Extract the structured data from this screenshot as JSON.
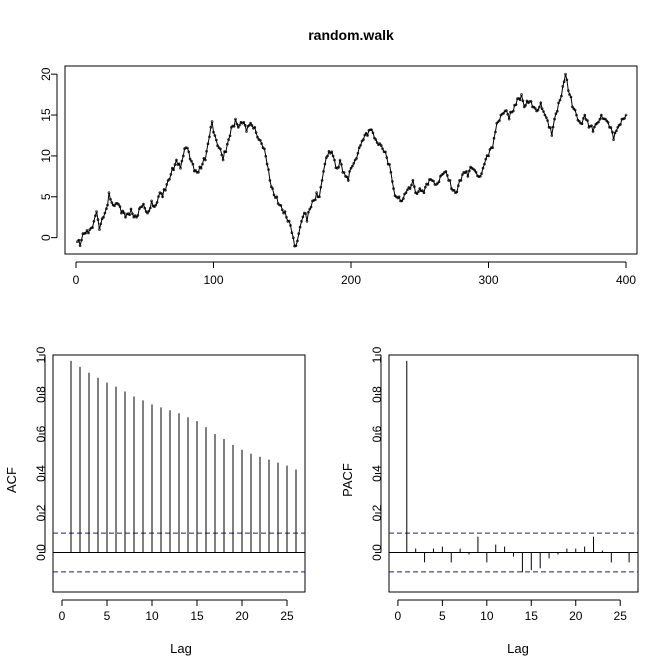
{
  "chart_data": [
    {
      "type": "line",
      "title": "random.walk",
      "xlabel": "",
      "ylabel": "",
      "xlim": [
        -8,
        408
      ],
      "ylim": [
        -2,
        21
      ],
      "xticks": [
        0,
        100,
        200,
        300,
        400
      ],
      "yticks": [
        0,
        5,
        10,
        15,
        20
      ],
      "grid": false,
      "legend": "none",
      "line_color": "#000000",
      "series": [
        {
          "x_start": 1,
          "x_step": 1,
          "anchors": [
            [
              1,
              -0.5
            ],
            [
              3,
              -1.0
            ],
            [
              6,
              0.5
            ],
            [
              10,
              1.0
            ],
            [
              13,
              2.0
            ],
            [
              15,
              3.2
            ],
            [
              17,
              1.0
            ],
            [
              20,
              2.5
            ],
            [
              23,
              4.0
            ],
            [
              24,
              5.5
            ],
            [
              27,
              4.0
            ],
            [
              30,
              4.2
            ],
            [
              33,
              3.0
            ],
            [
              36,
              2.5
            ],
            [
              40,
              3.5
            ],
            [
              44,
              2.5
            ],
            [
              48,
              3.8
            ],
            [
              52,
              3.0
            ],
            [
              55,
              4.5
            ],
            [
              58,
              4.0
            ],
            [
              61,
              5.5
            ],
            [
              63,
              5.0
            ],
            [
              65,
              5.8
            ],
            [
              67,
              7.0
            ],
            [
              70,
              8.5
            ],
            [
              73,
              9.5
            ],
            [
              76,
              8.5
            ],
            [
              78,
              10.0
            ],
            [
              80,
              11.0
            ],
            [
              82,
              10.5
            ],
            [
              85,
              9.0
            ],
            [
              88,
              8.0
            ],
            [
              91,
              8.5
            ],
            [
              94,
              9.5
            ],
            [
              96,
              11.5
            ],
            [
              98,
              13.5
            ],
            [
              99,
              14.2
            ],
            [
              101,
              12.5
            ],
            [
              104,
              11.0
            ],
            [
              107,
              9.5
            ],
            [
              109,
              10.5
            ],
            [
              111,
              12.0
            ],
            [
              113,
              13.5
            ],
            [
              116,
              14.5
            ],
            [
              118,
              13.5
            ],
            [
              121,
              14.0
            ],
            [
              124,
              13.0
            ],
            [
              127,
              14.0
            ],
            [
              130,
              13.5
            ],
            [
              133,
              12.0
            ],
            [
              136,
              11.0
            ],
            [
              139,
              9.0
            ],
            [
              141,
              7.0
            ],
            [
              143,
              6.0
            ],
            [
              146,
              5.0
            ],
            [
              148,
              4.0
            ],
            [
              151,
              3.0
            ],
            [
              154,
              2.0
            ],
            [
              156,
              1.5
            ],
            [
              158,
              0.0
            ],
            [
              160,
              -1.0
            ],
            [
              162,
              0.5
            ],
            [
              164,
              2.0
            ],
            [
              166,
              3.0
            ],
            [
              168,
              2.0
            ],
            [
              170,
              3.5
            ],
            [
              172,
              4.5
            ],
            [
              175,
              5.5
            ],
            [
              177,
              5.0
            ],
            [
              179,
              7.0
            ],
            [
              181,
              9.0
            ],
            [
              183,
              10.0
            ],
            [
              186,
              10.5
            ],
            [
              188,
              9.5
            ],
            [
              190,
              8.5
            ],
            [
              192,
              9.5
            ],
            [
              194,
              8.0
            ],
            [
              196,
              7.5
            ],
            [
              198,
              7.0
            ],
            [
              200,
              8.5
            ],
            [
              203,
              9.5
            ],
            [
              206,
              11.0
            ],
            [
              209,
              12.0
            ],
            [
              212,
              12.5
            ],
            [
              215,
              13.2
            ],
            [
              218,
              12.0
            ],
            [
              221,
              11.5
            ],
            [
              224,
              10.5
            ],
            [
              227,
              9.0
            ],
            [
              229,
              8.0
            ],
            [
              231,
              6.0
            ],
            [
              233,
              5.0
            ],
            [
              235,
              5.0
            ],
            [
              237,
              4.5
            ],
            [
              240,
              5.5
            ],
            [
              243,
              6.0
            ],
            [
              245,
              7.0
            ],
            [
              247,
              5.5
            ],
            [
              250,
              6.0
            ],
            [
              253,
              5.5
            ],
            [
              256,
              6.5
            ],
            [
              259,
              7.0
            ],
            [
              262,
              6.5
            ],
            [
              265,
              7.5
            ],
            [
              268,
              8.0
            ],
            [
              271,
              7.0
            ],
            [
              273,
              6.0
            ],
            [
              276,
              5.5
            ],
            [
              279,
              7.0
            ],
            [
              282,
              8.0
            ],
            [
              285,
              7.5
            ],
            [
              288,
              8.5
            ],
            [
              291,
              8.0
            ],
            [
              294,
              7.5
            ],
            [
              297,
              9.0
            ],
            [
              300,
              10.0
            ],
            [
              303,
              11.0
            ],
            [
              306,
              14.0
            ],
            [
              309,
              15.0
            ],
            [
              312,
              15.5
            ],
            [
              315,
              14.5
            ],
            [
              318,
              15.5
            ],
            [
              321,
              17.0
            ],
            [
              324,
              17.5
            ],
            [
              326,
              16.0
            ],
            [
              329,
              16.5
            ],
            [
              332,
              16.0
            ],
            [
              335,
              15.5
            ],
            [
              338,
              16.5
            ],
            [
              341,
              15.0
            ],
            [
              344,
              13.5
            ],
            [
              346,
              12.5
            ],
            [
              348,
              14.5
            ],
            [
              351,
              16.5
            ],
            [
              354,
              18.5
            ],
            [
              356,
              20.0
            ],
            [
              358,
              18.0
            ],
            [
              361,
              16.0
            ],
            [
              364,
              15.0
            ],
            [
              367,
              14.0
            ],
            [
              370,
              15.0
            ],
            [
              373,
              13.5
            ],
            [
              376,
              13.0
            ],
            [
              379,
              14.0
            ],
            [
              382,
              15.0
            ],
            [
              385,
              14.5
            ],
            [
              388,
              13.5
            ],
            [
              391,
              12.0
            ],
            [
              394,
              13.5
            ],
            [
              397,
              14.5
            ],
            [
              400,
              15.0
            ]
          ]
        }
      ]
    },
    {
      "type": "bar",
      "title": "",
      "xlabel": "Lag",
      "ylabel": "ACF",
      "xlim": [
        -1,
        27
      ],
      "ylim": [
        -0.2,
        1.0
      ],
      "xticks": [
        0,
        5,
        10,
        15,
        20,
        25
      ],
      "yticks": [
        0.0,
        0.2,
        0.4,
        0.6,
        0.8,
        1.0
      ],
      "tick_labels_y": [
        "0.0",
        "0.2",
        "0.4",
        "0.6",
        "0.8",
        "1.0"
      ],
      "grid": false,
      "legend": "none",
      "confidence_bound": 0.098,
      "bound_color": "#1f1f9f",
      "lags": [
        1,
        2,
        3,
        4,
        5,
        6,
        7,
        8,
        9,
        10,
        11,
        12,
        13,
        14,
        15,
        16,
        17,
        18,
        19,
        20,
        21,
        22,
        23,
        24,
        25,
        26
      ],
      "values": [
        0.97,
        0.94,
        0.91,
        0.885,
        0.86,
        0.84,
        0.815,
        0.79,
        0.77,
        0.75,
        0.735,
        0.72,
        0.705,
        0.685,
        0.665,
        0.635,
        0.6,
        0.575,
        0.545,
        0.52,
        0.5,
        0.485,
        0.47,
        0.455,
        0.44,
        0.42
      ]
    },
    {
      "type": "bar",
      "title": "",
      "xlabel": "Lag",
      "ylabel": "PACF",
      "xlim": [
        -1,
        27
      ],
      "ylim": [
        -0.2,
        1.0
      ],
      "xticks": [
        0,
        5,
        10,
        15,
        20,
        25
      ],
      "yticks": [
        0.0,
        0.2,
        0.4,
        0.6,
        0.8,
        1.0
      ],
      "tick_labels_y": [
        "0.0",
        "0.2",
        "0.4",
        "0.6",
        "0.8",
        "1.0"
      ],
      "grid": false,
      "legend": "none",
      "confidence_bound": 0.098,
      "bound_color": "#1f1f9f",
      "lags": [
        1,
        2,
        3,
        4,
        5,
        6,
        7,
        8,
        9,
        10,
        11,
        12,
        13,
        14,
        15,
        16,
        17,
        18,
        19,
        20,
        21,
        22,
        23,
        24,
        25,
        26
      ],
      "values": [
        0.97,
        0.02,
        -0.05,
        0.02,
        0.03,
        -0.05,
        0.02,
        -0.01,
        0.08,
        -0.05,
        0.04,
        0.03,
        -0.02,
        -0.1,
        -0.09,
        -0.08,
        -0.03,
        -0.01,
        0.02,
        0.02,
        0.03,
        0.08,
        0.01,
        -0.05,
        0.0,
        -0.05
      ]
    }
  ]
}
